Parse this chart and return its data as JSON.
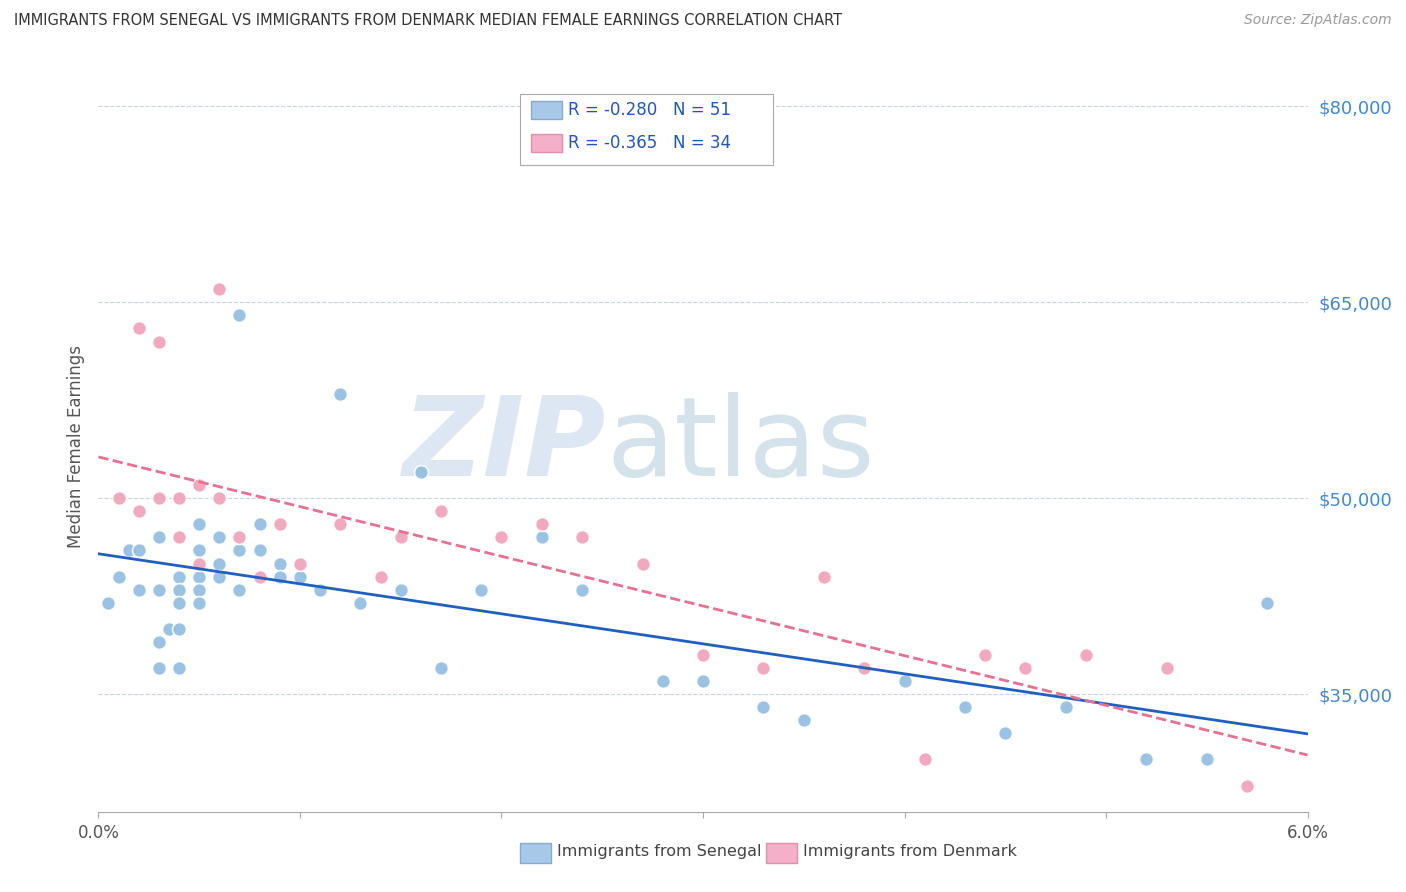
{
  "title": "IMMIGRANTS FROM SENEGAL VS IMMIGRANTS FROM DENMARK MEDIAN FEMALE EARNINGS CORRELATION CHART",
  "source": "Source: ZipAtlas.com",
  "ylabel": "Median Female Earnings",
  "xlim": [
    0.0,
    0.06
  ],
  "ylim": [
    26000,
    82000
  ],
  "xticks": [
    0.0,
    0.01,
    0.02,
    0.03,
    0.04,
    0.05,
    0.06
  ],
  "xtick_labels": [
    "0.0%",
    "",
    "",
    "",
    "",
    "",
    "6.0%"
  ],
  "yticks": [
    35000,
    50000,
    65000,
    80000
  ],
  "ytick_labels": [
    "$35,000",
    "$50,000",
    "$65,000",
    "$80,000"
  ],
  "watermark_zip": "ZIP",
  "watermark_atlas": "atlas",
  "watermark_color_zip": "#c5d8ec",
  "watermark_color_atlas": "#b8cfe0",
  "senegal_color": "#90bce0",
  "denmark_color": "#f0a0b8",
  "senegal_line_color": "#2060c0",
  "denmark_line_color": "#e87090",
  "background_color": "#ffffff",
  "grid_color": "#c8d4e4",
  "senegal_x": [
    0.0005,
    0.001,
    0.0015,
    0.002,
    0.002,
    0.003,
    0.003,
    0.003,
    0.003,
    0.0035,
    0.004,
    0.004,
    0.004,
    0.004,
    0.004,
    0.005,
    0.005,
    0.005,
    0.005,
    0.005,
    0.006,
    0.006,
    0.006,
    0.007,
    0.007,
    0.007,
    0.008,
    0.008,
    0.009,
    0.009,
    0.01,
    0.011,
    0.012,
    0.013,
    0.015,
    0.016,
    0.017,
    0.019,
    0.022,
    0.024,
    0.028,
    0.03,
    0.033,
    0.035,
    0.04,
    0.043,
    0.045,
    0.048,
    0.052,
    0.055,
    0.058
  ],
  "senegal_y": [
    42000,
    44000,
    46000,
    43000,
    46000,
    47000,
    43000,
    39000,
    37000,
    40000,
    44000,
    43000,
    42000,
    40000,
    37000,
    46000,
    48000,
    44000,
    43000,
    42000,
    45000,
    47000,
    44000,
    64000,
    46000,
    43000,
    48000,
    46000,
    45000,
    44000,
    44000,
    43000,
    58000,
    42000,
    43000,
    52000,
    37000,
    43000,
    47000,
    43000,
    36000,
    36000,
    34000,
    33000,
    36000,
    34000,
    32000,
    34000,
    30000,
    30000,
    42000
  ],
  "denmark_x": [
    0.001,
    0.002,
    0.002,
    0.003,
    0.003,
    0.004,
    0.004,
    0.005,
    0.005,
    0.006,
    0.006,
    0.007,
    0.008,
    0.009,
    0.01,
    0.012,
    0.014,
    0.015,
    0.017,
    0.02,
    0.022,
    0.024,
    0.027,
    0.03,
    0.033,
    0.036,
    0.038,
    0.041,
    0.044,
    0.046,
    0.049,
    0.053,
    0.057
  ],
  "denmark_y": [
    50000,
    49000,
    63000,
    50000,
    62000,
    50000,
    47000,
    51000,
    45000,
    50000,
    66000,
    47000,
    44000,
    48000,
    45000,
    48000,
    44000,
    47000,
    49000,
    47000,
    48000,
    47000,
    45000,
    38000,
    37000,
    44000,
    37000,
    30000,
    38000,
    37000,
    38000,
    37000,
    28000
  ]
}
